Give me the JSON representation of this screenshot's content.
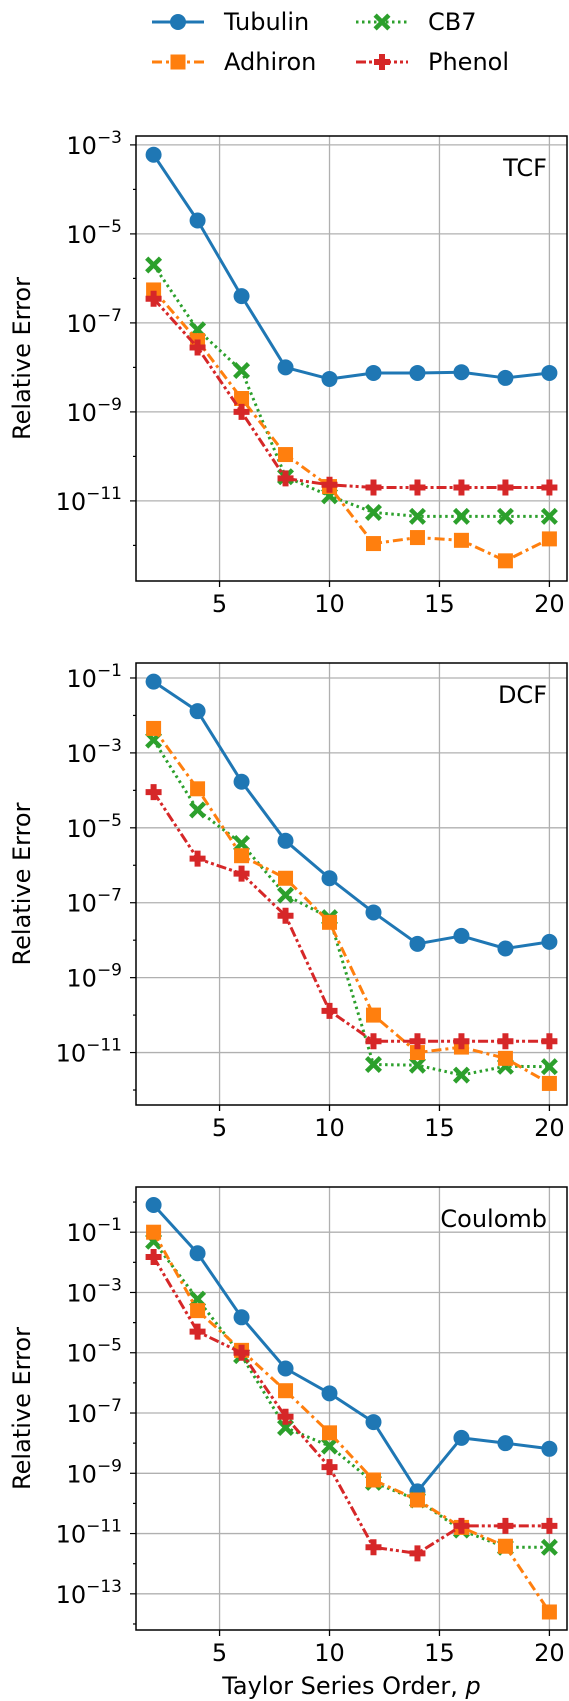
{
  "legend": {
    "entries": [
      {
        "name": "Tubulin",
        "color": "#1f77b4",
        "marker": "circle",
        "dash": "solid"
      },
      {
        "name": "CB7",
        "color": "#2ca02c",
        "marker": "x-filled",
        "dash": "dotted"
      },
      {
        "name": "Adhiron",
        "color": "#ff7f0e",
        "marker": "square",
        "dash": "dashdot"
      },
      {
        "name": "Phenol",
        "color": "#d62728",
        "marker": "plus-filled",
        "dash": "dashdotdot"
      }
    ]
  },
  "chart_data": [
    {
      "type": "line",
      "annotation": "TCF",
      "ylabel": "Relative Error",
      "xlabel": "",
      "yscale": "log",
      "xlim": [
        1.2,
        20.8
      ],
      "ylim_exp": [
        -12.8,
        -2.8
      ],
      "xticks": [
        5,
        10,
        15,
        20
      ],
      "yticks_exp": [
        -3,
        -5,
        -7,
        -9,
        -11
      ],
      "x": [
        2,
        4,
        6,
        8,
        10,
        12,
        14,
        16,
        18,
        20
      ],
      "series": [
        {
          "name": "Tubulin",
          "values": [
            0.0006,
            2e-05,
            4e-07,
            1e-08,
            5.5e-09,
            7.5e-09,
            7.5e-09,
            7.8e-09,
            5.8e-09,
            7.5e-09
          ]
        },
        {
          "name": "CB7",
          "values": [
            2e-06,
            7e-08,
            8.5e-09,
            3.5e-11,
            1.3e-11,
            5.5e-12,
            4.5e-12,
            4.5e-12,
            4.5e-12,
            4.5e-12
          ]
        },
        {
          "name": "Adhiron",
          "values": [
            5.5e-07,
            4e-08,
            2e-09,
            1.1e-10,
            2.1e-11,
            1.1e-12,
            1.5e-12,
            1.3e-12,
            4.5e-13,
            1.4e-12
          ]
        },
        {
          "name": "Phenol",
          "values": [
            3.5e-07,
            2.8e-08,
            1e-09,
            3.2e-11,
            2.3e-11,
            2e-11,
            2e-11,
            2e-11,
            2e-11,
            2e-11
          ]
        }
      ]
    },
    {
      "type": "line",
      "annotation": "DCF",
      "ylabel": "Relative Error",
      "xlabel": "",
      "yscale": "log",
      "xlim": [
        1.2,
        20.8
      ],
      "ylim_exp": [
        -12.4,
        -0.6
      ],
      "xticks": [
        5,
        10,
        15,
        20
      ],
      "yticks_exp": [
        -1,
        -3,
        -5,
        -7,
        -9,
        -11
      ],
      "x": [
        2,
        4,
        6,
        8,
        10,
        12,
        14,
        16,
        18,
        20
      ],
      "series": [
        {
          "name": "Tubulin",
          "values": [
            0.08,
            0.013,
            0.00017,
            4.5e-06,
            4.5e-07,
            5.5e-08,
            8e-09,
            1.3e-08,
            6e-09,
            9e-09
          ]
        },
        {
          "name": "CB7",
          "values": [
            0.0022,
            3e-05,
            3.8e-06,
            1.6e-07,
            4e-08,
            4.8e-12,
            4.6e-12,
            2.5e-12,
            4.3e-12,
            4.2e-12
          ]
        },
        {
          "name": "Adhiron",
          "values": [
            0.0045,
            0.00011,
            1.8e-06,
            4.5e-07,
            3e-08,
            1e-10,
            1e-11,
            1.4e-11,
            7e-12,
            1.5e-12
          ]
        },
        {
          "name": "Phenol",
          "values": [
            9e-05,
            1.5e-06,
            6e-07,
            4.5e-08,
            1.3e-10,
            2e-11,
            2e-11,
            2e-11,
            2e-11,
            2e-11
          ]
        }
      ]
    },
    {
      "type": "line",
      "annotation": "Coulomb",
      "ylabel": "Relative Error",
      "xlabel": "Taylor Series Order, p",
      "yscale": "log",
      "xlim": [
        1.2,
        20.8
      ],
      "ylim_exp": [
        -14.2,
        0.5
      ],
      "xticks": [
        5,
        10,
        15,
        20
      ],
      "yticks_exp": [
        -1,
        -3,
        -5,
        -7,
        -9,
        -11,
        -13
      ],
      "x": [
        2,
        4,
        6,
        8,
        10,
        12,
        14,
        16,
        18,
        20
      ],
      "series": [
        {
          "name": "Tubulin",
          "values": [
            0.8,
            0.02,
            0.00015,
            3e-06,
            4.5e-07,
            5e-08,
            2.5e-10,
            1.5e-08,
            1e-08,
            6.5e-09
          ]
        },
        {
          "name": "CB7",
          "values": [
            0.05,
            0.0006,
            8e-06,
            3.3e-08,
            8e-09,
            5e-10,
            1.3e-10,
            1.3e-11,
            3.5e-12,
            3.5e-12
          ]
        },
        {
          "name": "Adhiron",
          "values": [
            0.1,
            0.00025,
            1.2e-05,
            5.5e-07,
            2.2e-08,
            6e-10,
            1.3e-10,
            1.6e-11,
            3.8e-12,
            2.5e-14
          ]
        },
        {
          "name": "Phenol",
          "values": [
            0.015,
            5e-05,
            1e-05,
            7.5e-08,
            1.6e-09,
            3.5e-12,
            2.2e-12,
            1.8e-11,
            1.8e-11,
            1.8e-11
          ]
        }
      ]
    }
  ]
}
